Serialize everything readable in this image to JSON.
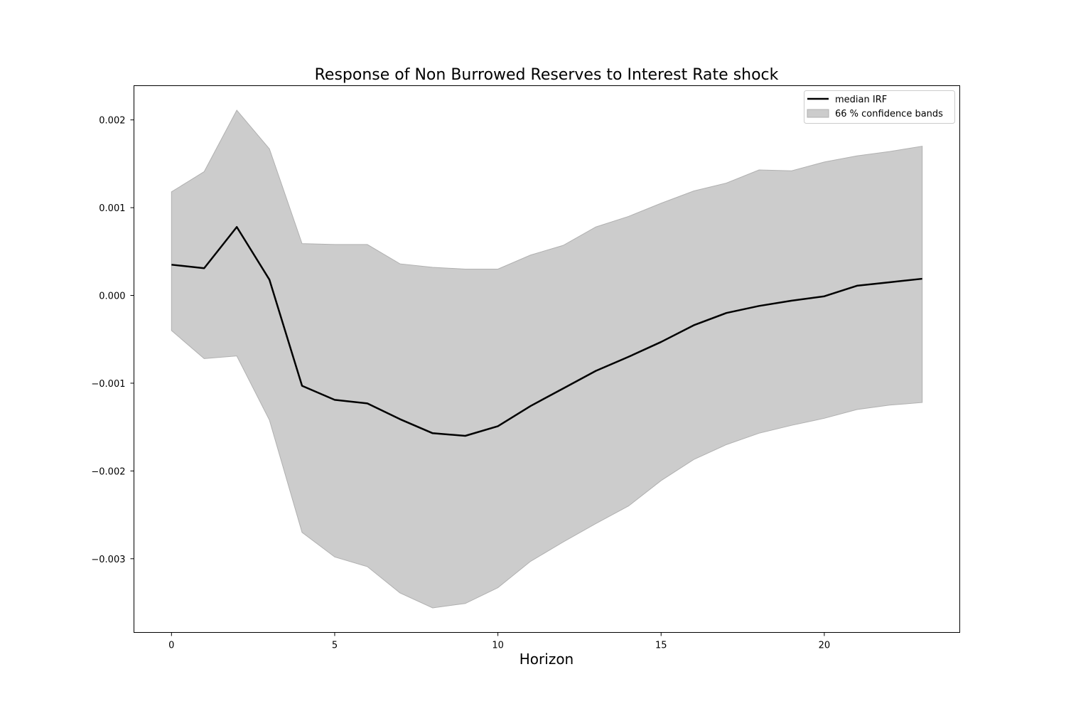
{
  "chart_data": {
    "type": "line",
    "title": "Response of Non Burrowed Reserves to Interest Rate shock",
    "xlabel": "Horizon",
    "ylabel": "",
    "xlim": [
      -1.15,
      24.15
    ],
    "ylim": [
      -0.00384,
      0.00239
    ],
    "xticks": [
      0,
      5,
      10,
      15,
      20
    ],
    "xtick_labels": [
      "0",
      "5",
      "10",
      "15",
      "20"
    ],
    "yticks": [
      0.002,
      0.001,
      0.0,
      -0.001,
      -0.002,
      -0.003
    ],
    "ytick_labels": [
      "0.002",
      "0.001",
      "0.000",
      "−0.001",
      "−0.002",
      "−0.003"
    ],
    "grid": false,
    "legend_position": "top-right",
    "x": [
      0,
      1,
      2,
      3,
      4,
      5,
      6,
      7,
      8,
      9,
      10,
      11,
      12,
      13,
      14,
      15,
      16,
      17,
      18,
      19,
      20,
      21,
      22,
      23
    ],
    "series": [
      {
        "name": "median IRF",
        "color": "#000000",
        "values": [
          0.00035,
          0.00031,
          0.00078,
          0.00018,
          -0.00103,
          -0.00119,
          -0.00123,
          -0.00141,
          -0.00157,
          -0.0016,
          -0.00149,
          -0.00126,
          -0.00106,
          -0.00086,
          -0.0007,
          -0.00053,
          -0.00034,
          -0.0002,
          -0.00012,
          -6e-05,
          -1e-05,
          0.00011,
          0.00015,
          0.00019
        ]
      }
    ],
    "band": {
      "name": "66 % confidence bands",
      "color": "#cccccc",
      "edge_color": "#b0b0b0",
      "upper": [
        0.00118,
        0.00141,
        0.00211,
        0.00167,
        0.00059,
        0.00058,
        0.00058,
        0.00036,
        0.00032,
        0.0003,
        0.0003,
        0.00046,
        0.00057,
        0.00078,
        0.0009,
        0.00105,
        0.00119,
        0.00128,
        0.00143,
        0.00142,
        0.00152,
        0.00159,
        0.00164,
        0.0017
      ],
      "lower": [
        -0.0004,
        -0.00072,
        -0.00069,
        -0.00142,
        -0.0027,
        -0.00298,
        -0.00309,
        -0.00339,
        -0.00356,
        -0.00351,
        -0.00333,
        -0.00303,
        -0.00281,
        -0.0026,
        -0.0024,
        -0.00211,
        -0.00187,
        -0.0017,
        -0.00157,
        -0.00148,
        -0.0014,
        -0.0013,
        -0.00125,
        -0.00122
      ]
    }
  }
}
